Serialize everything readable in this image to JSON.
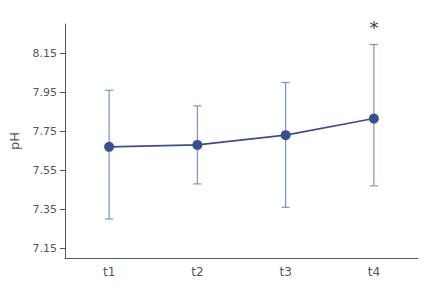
{
  "chart_data": {
    "type": "line",
    "categories": [
      "t1",
      "t2",
      "t3",
      "t4"
    ],
    "values": [
      7.67,
      7.68,
      7.73,
      7.815
    ],
    "error_bars": {
      "upper": [
        0.29,
        0.2,
        0.27,
        0.38
      ],
      "lower": [
        0.37,
        0.2,
        0.37,
        0.345
      ],
      "color": "#8090c0"
    },
    "color": "#3a4f8c",
    "marker": "circle",
    "ylabel": "pH",
    "ylim": [
      7.1,
      8.3
    ],
    "yticks": [
      7.15,
      7.35,
      7.55,
      7.75,
      7.95,
      8.15
    ],
    "grid": false,
    "annotations": [
      {
        "text": "*",
        "x": "t4",
        "y": 8.235
      }
    ]
  }
}
